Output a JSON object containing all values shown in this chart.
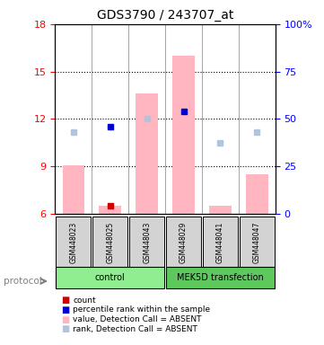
{
  "title": "GDS3790 / 243707_at",
  "samples": [
    "GSM448023",
    "GSM448025",
    "GSM448043",
    "GSM448029",
    "GSM448041",
    "GSM448047"
  ],
  "groups": [
    "control",
    "control",
    "control",
    "MEK5D transfection",
    "MEK5D transfection",
    "MEK5D transfection"
  ],
  "group_labels": [
    "control",
    "MEK5D transfection"
  ],
  "group_colors": [
    "#90EE90",
    "#4CBB47"
  ],
  "ylim_left": [
    6,
    18
  ],
  "ylim_right": [
    0,
    100
  ],
  "yticks_left": [
    6,
    9,
    12,
    15,
    18
  ],
  "yticks_right": [
    0,
    25,
    50,
    75,
    100
  ],
  "bar_values": [
    9.1,
    6.5,
    13.6,
    16.0,
    6.5,
    8.5
  ],
  "bar_color": "#FFB6C1",
  "count_values": [
    null,
    6.5,
    null,
    null,
    null,
    null
  ],
  "count_color": "#CC0000",
  "rank_values": [
    11.2,
    11.5,
    12.0,
    12.5,
    10.5,
    11.2
  ],
  "rank_color_present": "#0000CC",
  "rank_color_absent": "#B0C4DE",
  "rank_absent": [
    true,
    false,
    true,
    false,
    true,
    true
  ],
  "legend_items": [
    {
      "label": "count",
      "color": "#CC0000"
    },
    {
      "label": "percentile rank within the sample",
      "color": "#0000CC"
    },
    {
      "label": "value, Detection Call = ABSENT",
      "color": "#FFB6C1"
    },
    {
      "label": "rank, Detection Call = ABSENT",
      "color": "#B0C4DE"
    }
  ]
}
